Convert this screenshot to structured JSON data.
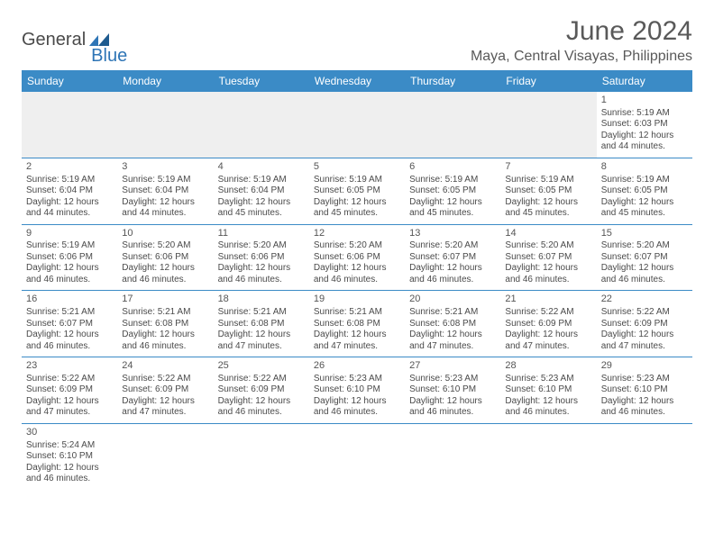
{
  "logo": {
    "word1": "General",
    "word2": "Blue",
    "shape_color": "#2e75b6"
  },
  "title": "June 2024",
  "location": "Maya, Central Visayas, Philippines",
  "colors": {
    "header_bg": "#3b8bc6",
    "header_text": "#ffffff",
    "row_border": "#3b8bc6",
    "blank_bg": "#efefef",
    "text": "#4a4a4a",
    "title_text": "#595959"
  },
  "day_headers": [
    "Sunday",
    "Monday",
    "Tuesday",
    "Wednesday",
    "Thursday",
    "Friday",
    "Saturday"
  ],
  "weeks": [
    [
      null,
      null,
      null,
      null,
      null,
      null,
      {
        "n": "1",
        "sunrise": "5:19 AM",
        "sunset": "6:03 PM",
        "daylight": "12 hours and 44 minutes."
      }
    ],
    [
      {
        "n": "2",
        "sunrise": "5:19 AM",
        "sunset": "6:04 PM",
        "daylight": "12 hours and 44 minutes."
      },
      {
        "n": "3",
        "sunrise": "5:19 AM",
        "sunset": "6:04 PM",
        "daylight": "12 hours and 44 minutes."
      },
      {
        "n": "4",
        "sunrise": "5:19 AM",
        "sunset": "6:04 PM",
        "daylight": "12 hours and 45 minutes."
      },
      {
        "n": "5",
        "sunrise": "5:19 AM",
        "sunset": "6:05 PM",
        "daylight": "12 hours and 45 minutes."
      },
      {
        "n": "6",
        "sunrise": "5:19 AM",
        "sunset": "6:05 PM",
        "daylight": "12 hours and 45 minutes."
      },
      {
        "n": "7",
        "sunrise": "5:19 AM",
        "sunset": "6:05 PM",
        "daylight": "12 hours and 45 minutes."
      },
      {
        "n": "8",
        "sunrise": "5:19 AM",
        "sunset": "6:05 PM",
        "daylight": "12 hours and 45 minutes."
      }
    ],
    [
      {
        "n": "9",
        "sunrise": "5:19 AM",
        "sunset": "6:06 PM",
        "daylight": "12 hours and 46 minutes."
      },
      {
        "n": "10",
        "sunrise": "5:20 AM",
        "sunset": "6:06 PM",
        "daylight": "12 hours and 46 minutes."
      },
      {
        "n": "11",
        "sunrise": "5:20 AM",
        "sunset": "6:06 PM",
        "daylight": "12 hours and 46 minutes."
      },
      {
        "n": "12",
        "sunrise": "5:20 AM",
        "sunset": "6:06 PM",
        "daylight": "12 hours and 46 minutes."
      },
      {
        "n": "13",
        "sunrise": "5:20 AM",
        "sunset": "6:07 PM",
        "daylight": "12 hours and 46 minutes."
      },
      {
        "n": "14",
        "sunrise": "5:20 AM",
        "sunset": "6:07 PM",
        "daylight": "12 hours and 46 minutes."
      },
      {
        "n": "15",
        "sunrise": "5:20 AM",
        "sunset": "6:07 PM",
        "daylight": "12 hours and 46 minutes."
      }
    ],
    [
      {
        "n": "16",
        "sunrise": "5:21 AM",
        "sunset": "6:07 PM",
        "daylight": "12 hours and 46 minutes."
      },
      {
        "n": "17",
        "sunrise": "5:21 AM",
        "sunset": "6:08 PM",
        "daylight": "12 hours and 46 minutes."
      },
      {
        "n": "18",
        "sunrise": "5:21 AM",
        "sunset": "6:08 PM",
        "daylight": "12 hours and 47 minutes."
      },
      {
        "n": "19",
        "sunrise": "5:21 AM",
        "sunset": "6:08 PM",
        "daylight": "12 hours and 47 minutes."
      },
      {
        "n": "20",
        "sunrise": "5:21 AM",
        "sunset": "6:08 PM",
        "daylight": "12 hours and 47 minutes."
      },
      {
        "n": "21",
        "sunrise": "5:22 AM",
        "sunset": "6:09 PM",
        "daylight": "12 hours and 47 minutes."
      },
      {
        "n": "22",
        "sunrise": "5:22 AM",
        "sunset": "6:09 PM",
        "daylight": "12 hours and 47 minutes."
      }
    ],
    [
      {
        "n": "23",
        "sunrise": "5:22 AM",
        "sunset": "6:09 PM",
        "daylight": "12 hours and 47 minutes."
      },
      {
        "n": "24",
        "sunrise": "5:22 AM",
        "sunset": "6:09 PM",
        "daylight": "12 hours and 47 minutes."
      },
      {
        "n": "25",
        "sunrise": "5:22 AM",
        "sunset": "6:09 PM",
        "daylight": "12 hours and 46 minutes."
      },
      {
        "n": "26",
        "sunrise": "5:23 AM",
        "sunset": "6:10 PM",
        "daylight": "12 hours and 46 minutes."
      },
      {
        "n": "27",
        "sunrise": "5:23 AM",
        "sunset": "6:10 PM",
        "daylight": "12 hours and 46 minutes."
      },
      {
        "n": "28",
        "sunrise": "5:23 AM",
        "sunset": "6:10 PM",
        "daylight": "12 hours and 46 minutes."
      },
      {
        "n": "29",
        "sunrise": "5:23 AM",
        "sunset": "6:10 PM",
        "daylight": "12 hours and 46 minutes."
      }
    ],
    [
      {
        "n": "30",
        "sunrise": "5:24 AM",
        "sunset": "6:10 PM",
        "daylight": "12 hours and 46 minutes."
      },
      null,
      null,
      null,
      null,
      null,
      null
    ]
  ],
  "labels": {
    "sunrise_prefix": "Sunrise: ",
    "sunset_prefix": "Sunset: ",
    "daylight_prefix": "Daylight: "
  }
}
